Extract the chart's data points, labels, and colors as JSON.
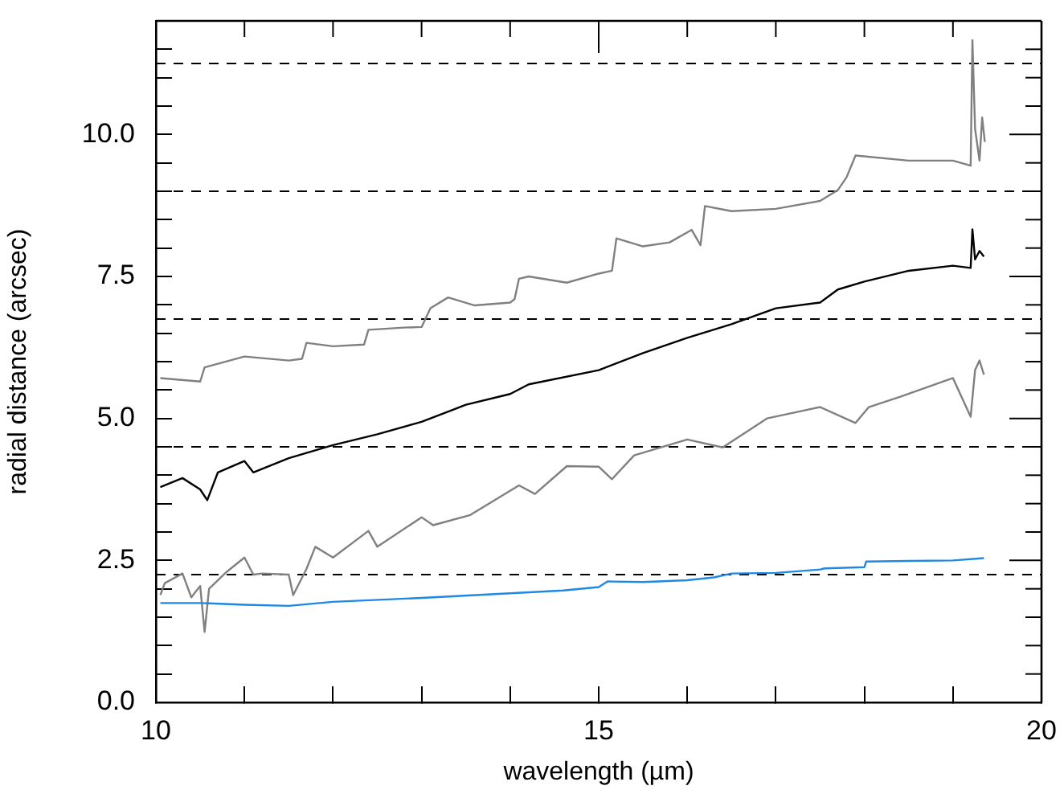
{
  "chart_data": {
    "type": "line",
    "xlabel": "wavelength (µm)",
    "ylabel": "radial distance (arcsec)",
    "xlim": [
      10,
      20
    ],
    "ylim": [
      0,
      12
    ],
    "xticks": [
      10,
      {
        "value": 11,
        "label": null
      },
      {
        "value": 12,
        "label": null
      },
      {
        "value": 13,
        "label": null
      },
      {
        "value": 14,
        "label": null
      },
      15,
      {
        "value": 16,
        "label": null
      },
      {
        "value": 17,
        "label": null
      },
      {
        "value": 18,
        "label": null
      },
      {
        "value": 19,
        "label": null
      },
      20
    ],
    "yticks": [
      {
        "value": 0,
        "label": "0.0"
      },
      {
        "value": 0.5,
        "label": null
      },
      {
        "value": 1,
        "label": null
      },
      {
        "value": 1.5,
        "label": null
      },
      {
        "value": 2,
        "label": null
      },
      2.5,
      {
        "value": 3,
        "label": null
      },
      {
        "value": 3.5,
        "label": null
      },
      {
        "value": 4,
        "label": null
      },
      {
        "value": 4.5,
        "label": null
      },
      {
        "value": 5,
        "label": "5.0"
      },
      {
        "value": 5.5,
        "label": null
      },
      {
        "value": 6,
        "label": null
      },
      {
        "value": 6.5,
        "label": null
      },
      {
        "value": 7,
        "label": null
      },
      7.5,
      {
        "value": 8,
        "label": null
      },
      {
        "value": 8.5,
        "label": null
      },
      {
        "value": 9,
        "label": null
      },
      {
        "value": 9.5,
        "label": null
      },
      {
        "value": 10,
        "label": "10.0"
      },
      {
        "value": 10.5,
        "label": null
      },
      {
        "value": 11,
        "label": null
      },
      {
        "value": 11.5,
        "label": null
      }
    ],
    "marker": "none",
    "line_style": "solid",
    "ref_lines": [
      {
        "axis": "y",
        "value": 2.25,
        "color": "#000000",
        "line_style": "dashed"
      },
      {
        "axis": "y",
        "value": 4.5,
        "color": "#000000",
        "line_style": "dashed"
      },
      {
        "axis": "y",
        "value": 6.75,
        "color": "#000000",
        "line_style": "dashed"
      },
      {
        "axis": "y",
        "value": 9.0,
        "color": "#000000",
        "line_style": "dashed"
      },
      {
        "axis": "y",
        "value": 11.25,
        "color": "#000000",
        "line_style": "dashed"
      }
    ],
    "series": [
      {
        "color": "#1e88e5",
        "x": [
          10.05,
          10.5,
          11.0,
          11.5,
          12.0,
          13.0,
          14.0,
          14.6,
          15.0,
          15.1,
          15.5,
          16.0,
          16.3,
          16.5,
          17.0,
          17.5,
          17.55,
          18.0,
          18.02,
          18.5,
          19.0,
          19.35
        ],
        "values": [
          1.75,
          1.75,
          1.72,
          1.7,
          1.77,
          1.84,
          1.92,
          1.97,
          2.03,
          2.13,
          2.12,
          2.15,
          2.2,
          2.27,
          2.28,
          2.34,
          2.36,
          2.38,
          2.48,
          2.49,
          2.5,
          2.54
        ]
      },
      {
        "color": "#000000",
        "x": [
          10.05,
          10.3,
          10.5,
          10.58,
          10.7,
          11.0,
          11.1,
          11.5,
          12.0,
          12.5,
          13.0,
          13.5,
          14.0,
          14.21,
          15.0,
          15.5,
          16.0,
          16.5,
          17.0,
          17.5,
          17.7,
          18.0,
          18.5,
          19.0,
          19.2,
          19.22,
          19.25,
          19.3,
          19.35
        ],
        "values": [
          3.79,
          3.95,
          3.75,
          3.56,
          4.05,
          4.25,
          4.05,
          4.3,
          4.53,
          4.72,
          4.94,
          5.24,
          5.43,
          5.6,
          5.85,
          6.15,
          6.42,
          6.66,
          6.94,
          7.04,
          7.27,
          7.41,
          7.6,
          7.69,
          7.65,
          8.33,
          7.8,
          7.95,
          7.85
        ]
      },
      {
        "color": "#808080",
        "x": [
          10.05,
          10.5,
          10.55,
          11.0,
          11.5,
          11.65,
          11.7,
          12.0,
          12.35,
          12.4,
          12.8,
          13.0,
          13.1,
          13.3,
          13.6,
          14.0,
          14.05,
          14.1,
          14.21,
          14.64,
          15.0,
          15.15,
          15.2,
          15.5,
          15.8,
          16.05,
          16.15,
          16.2,
          16.5,
          17.0,
          17.5,
          17.7,
          17.8,
          17.9,
          18.5,
          19.0,
          19.2,
          19.22,
          19.25,
          19.3,
          19.33,
          19.36
        ],
        "values": [
          5.71,
          5.65,
          5.9,
          6.09,
          6.02,
          6.05,
          6.33,
          6.27,
          6.3,
          6.56,
          6.6,
          6.61,
          6.94,
          7.13,
          6.99,
          7.04,
          7.1,
          7.46,
          7.5,
          7.39,
          7.55,
          7.6,
          8.17,
          8.03,
          8.1,
          8.32,
          8.05,
          8.74,
          8.65,
          8.69,
          8.83,
          9.02,
          9.25,
          9.63,
          9.54,
          9.54,
          9.45,
          11.66,
          10.1,
          9.54,
          10.3,
          9.87
        ]
      },
      {
        "color": "#808080",
        "x": [
          10.05,
          10.1,
          10.3,
          10.4,
          10.5,
          10.55,
          10.6,
          10.8,
          11.0,
          11.1,
          11.2,
          11.5,
          11.55,
          11.7,
          11.8,
          12.0,
          12.4,
          12.5,
          13.0,
          13.13,
          13.55,
          14.1,
          14.28,
          14.64,
          15.0,
          15.15,
          15.4,
          16.0,
          16.4,
          16.9,
          17.5,
          17.9,
          18.05,
          18.4,
          19.0,
          19.2,
          19.25,
          19.3,
          19.35
        ],
        "values": [
          1.89,
          2.1,
          2.27,
          1.85,
          2.05,
          1.24,
          2.0,
          2.3,
          2.55,
          2.25,
          2.27,
          2.25,
          1.89,
          2.35,
          2.74,
          2.55,
          3.02,
          2.74,
          3.26,
          3.12,
          3.3,
          3.82,
          3.67,
          4.16,
          4.15,
          3.93,
          4.35,
          4.63,
          4.49,
          5.0,
          5.2,
          4.92,
          5.2,
          5.38,
          5.71,
          5.03,
          5.85,
          6.02,
          5.77
        ]
      }
    ]
  }
}
